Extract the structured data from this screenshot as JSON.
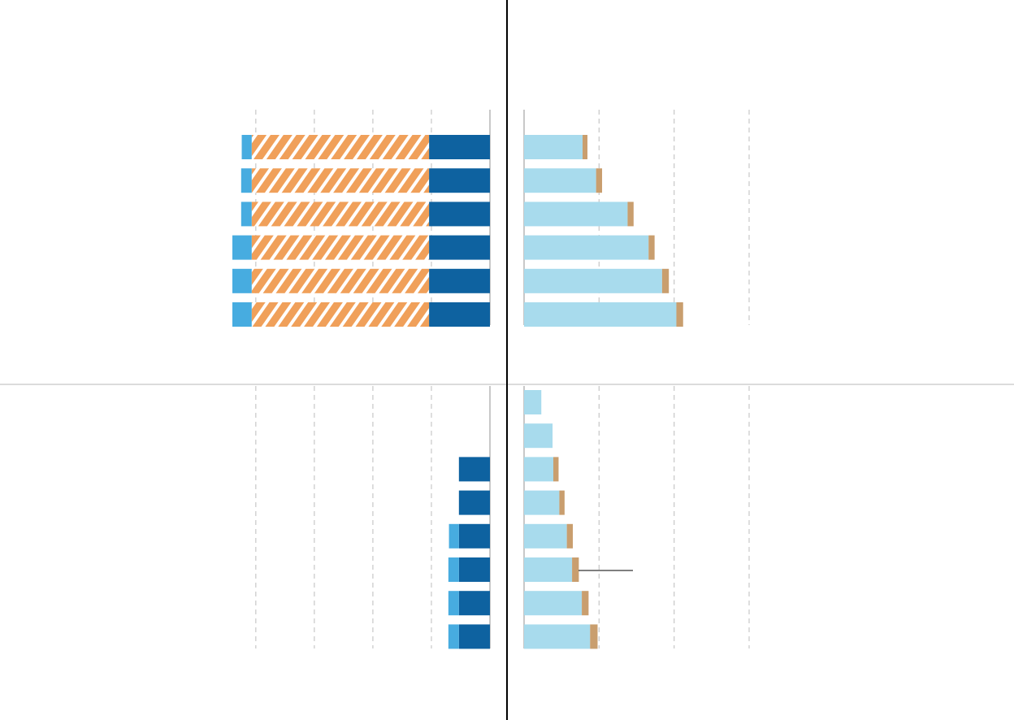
{
  "chart_data": [
    {
      "type": "bar",
      "categories": [
        null,
        null,
        null,
        null,
        null,
        null
      ],
      "xlim": [
        44,
        0
      ],
      "xticks": [
        40,
        30,
        20,
        10,
        0
      ],
      "grid": true,
      "series": [
        {
          "color": "#0e62a0",
          "values": [
            10.4,
            10.4,
            10.4,
            10.4,
            10.4,
            10.4
          ]
        },
        {
          "color": "#f0a05a",
          "hatch": true,
          "values": [
            30.3,
            30.3,
            30.3,
            30.3,
            30.3,
            30.3
          ]
        },
        {
          "color": "#47ace0",
          "values": [
            1.7,
            1.8,
            1.8,
            3.3,
            3.3,
            3.3
          ]
        }
      ]
    },
    {
      "type": "bar",
      "categories": [
        null,
        null,
        null,
        null,
        null,
        null
      ],
      "xlim": [
        0,
        30
      ],
      "xticks": [
        0,
        10,
        20,
        30
      ],
      "grid": true,
      "series": [
        {
          "color": "#a8dbed",
          "values": [
            7.8,
            9.6,
            13.8,
            16.6,
            18.4,
            20.3
          ]
        },
        {
          "color": "#c99e6e",
          "values": [
            0.65,
            0.8,
            0.8,
            0.8,
            0.9,
            0.9
          ]
        }
      ]
    },
    {
      "type": "bar",
      "categories": [
        null,
        null,
        null,
        null,
        null,
        null,
        null,
        null
      ],
      "xlim": [
        44,
        0
      ],
      "xticks": [
        40,
        30,
        20,
        10,
        0
      ],
      "grid": true,
      "series": [
        {
          "color": "#0e62a0",
          "values": [
            0,
            0,
            5.3,
            5.3,
            5.3,
            5.3,
            5.3,
            5.3
          ]
        },
        {
          "color": "#47ace0",
          "values": [
            0,
            0,
            0,
            0,
            1.7,
            1.8,
            1.8,
            1.8
          ]
        }
      ]
    },
    {
      "type": "bar",
      "categories": [
        null,
        null,
        null,
        null,
        null,
        null,
        null,
        null
      ],
      "xlim": [
        0,
        30
      ],
      "xticks": [
        0,
        10,
        20,
        30
      ],
      "grid": true,
      "series": [
        {
          "color": "#a8dbed",
          "values": [
            2.3,
            3.8,
            3.9,
            4.7,
            5.7,
            6.4,
            7.7,
            8.8
          ]
        },
        {
          "color": "#c99e6e",
          "values": [
            0,
            0,
            0.7,
            0.7,
            0.8,
            0.9,
            0.9,
            1.0
          ]
        }
      ]
    }
  ]
}
